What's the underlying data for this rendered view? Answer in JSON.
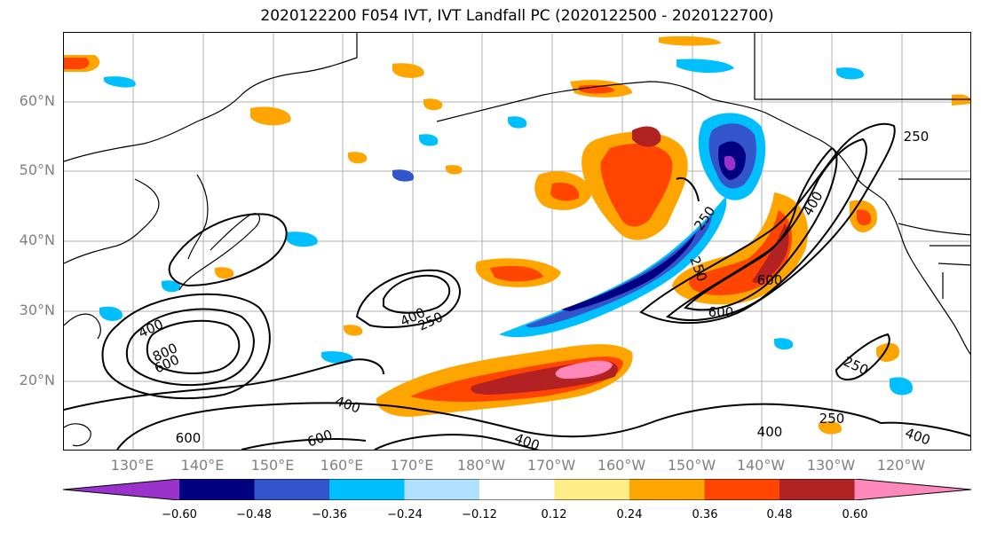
{
  "title": "2020122200 F054 IVT, IVT Landfall PC (2020122500 - 2020122700)",
  "lat_labels": [
    "60°N",
    "50°N",
    "40°N",
    "30°N",
    "20°N"
  ],
  "lon_labels": [
    "130°E",
    "140°E",
    "150°E",
    "160°E",
    "170°E",
    "180°W",
    "170°W",
    "160°W",
    "150°W",
    "140°W",
    "130°W",
    "120°W"
  ],
  "contour_labels": [
    "250",
    "400",
    "600",
    "800"
  ],
  "colorbar": {
    "colors": [
      "#9933cc",
      "#000080",
      "#3355cc",
      "#00bfff",
      "#b0e0ff",
      "#ffffff",
      "#ffee88",
      "#ffa500",
      "#ff4500",
      "#b22222",
      "#ff88bb"
    ],
    "ticks": [
      "−0.60",
      "−0.48",
      "−0.36",
      "−0.24",
      "−0.12",
      "0.12",
      "0.24",
      "0.36",
      "0.48",
      "0.60"
    ]
  }
}
